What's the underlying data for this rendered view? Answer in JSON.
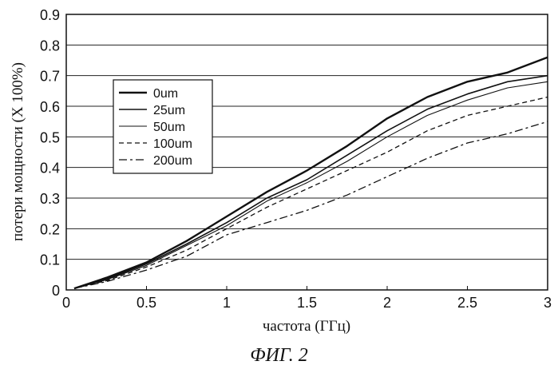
{
  "figure_caption": "ФИГ. 2",
  "chart_data": {
    "type": "line",
    "xlabel": "частота (ГГц)",
    "ylabel": "потери мощности (X 100%)",
    "xlim": [
      0,
      3
    ],
    "ylim": [
      0,
      0.9
    ],
    "xticks": [
      "0",
      "0.5",
      "1",
      "1.5",
      "2",
      "2.5",
      "3"
    ],
    "yticks": [
      "0",
      "0.1",
      "0.2",
      "0.3",
      "0.4",
      "0.5",
      "0.6",
      "0.7",
      "0.8",
      "0.9"
    ],
    "grid": "horizontal",
    "legend_position": "upper-left",
    "x": [
      0.05,
      0.25,
      0.5,
      0.75,
      1.0,
      1.25,
      1.5,
      1.75,
      2.0,
      2.25,
      2.5,
      2.75,
      3.0
    ],
    "series": [
      {
        "name": "0um",
        "style": "solid-thick",
        "values": [
          0.005,
          0.04,
          0.09,
          0.16,
          0.24,
          0.32,
          0.39,
          0.47,
          0.56,
          0.63,
          0.68,
          0.71,
          0.76
        ]
      },
      {
        "name": "25um",
        "style": "solid",
        "values": [
          0.005,
          0.035,
          0.085,
          0.15,
          0.22,
          0.3,
          0.36,
          0.44,
          0.52,
          0.59,
          0.64,
          0.68,
          0.7
        ]
      },
      {
        "name": "50um",
        "style": "solid-thin",
        "values": [
          0.005,
          0.033,
          0.08,
          0.145,
          0.21,
          0.29,
          0.35,
          0.42,
          0.5,
          0.57,
          0.62,
          0.66,
          0.68
        ]
      },
      {
        "name": "100um",
        "style": "dashed",
        "values": [
          0.005,
          0.03,
          0.075,
          0.13,
          0.2,
          0.27,
          0.33,
          0.39,
          0.45,
          0.52,
          0.57,
          0.6,
          0.63
        ]
      },
      {
        "name": "200um",
        "style": "dashdot",
        "values": [
          0.005,
          0.027,
          0.065,
          0.11,
          0.18,
          0.22,
          0.26,
          0.31,
          0.37,
          0.43,
          0.48,
          0.51,
          0.55
        ]
      }
    ],
    "colors": {
      "line": "#111111",
      "grid": "#222222",
      "background": "#ffffff"
    }
  }
}
